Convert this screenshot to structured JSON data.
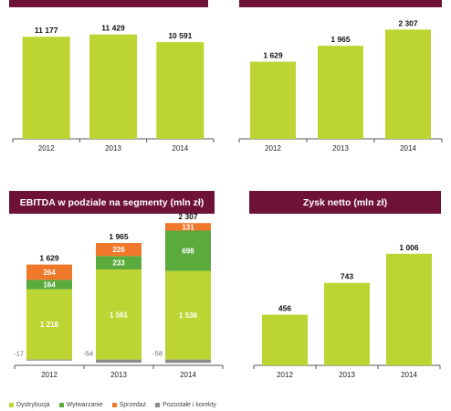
{
  "colors": {
    "header_bg": "#6e1237",
    "bar_green": "#bdd532",
    "dystrybucja": "#bdd532",
    "wytwarzanie": "#5aaa3c",
    "sprzedaz": "#f0782a",
    "pozostale": "#8c8c8c",
    "axis": "#555555"
  },
  "panel_tl": {
    "title": "",
    "chart_data": {
      "type": "bar",
      "categories": [
        "2012",
        "2013",
        "2014"
      ],
      "values": [
        11177,
        11429,
        10591
      ],
      "value_labels": [
        "11 177",
        "11 429",
        "10 591"
      ],
      "ylim": [
        0,
        14000
      ]
    }
  },
  "panel_tr": {
    "title": "",
    "chart_data": {
      "type": "bar",
      "categories": [
        "2012",
        "2013",
        "2014"
      ],
      "values": [
        1629,
        1965,
        2307
      ],
      "value_labels": [
        "1 629",
        "1 965",
        "2 307"
      ],
      "ylim": [
        0,
        2700
      ]
    }
  },
  "panel_bl": {
    "title": "EBITDA w podziale na segmenty (mln zł)",
    "chart_data": {
      "type": "bar",
      "stacked": true,
      "categories": [
        "2012",
        "2013",
        "2014"
      ],
      "series": [
        {
          "name": "Dystrybucja",
          "values": [
            1218,
            1561,
            1536
          ],
          "labels": [
            "1 218",
            "1 561",
            "1 536"
          ]
        },
        {
          "name": "Wytwarzanie",
          "values": [
            164,
            233,
            698
          ],
          "labels": [
            "164",
            "233",
            "698"
          ]
        },
        {
          "name": "Sprzedaż",
          "values": [
            264,
            226,
            131
          ],
          "labels": [
            "264",
            "226",
            "131"
          ]
        },
        {
          "name": "Pozostałe i korekty",
          "values": [
            -17,
            -54,
            -58
          ],
          "labels": [
            "-17",
            "-54",
            "-58"
          ]
        }
      ],
      "totals": [
        1629,
        1965,
        2307
      ],
      "total_labels": [
        "1 629",
        "1 965",
        "2 307"
      ],
      "ylim": [
        -100,
        2400
      ],
      "legend_position": "bottom"
    }
  },
  "panel_br": {
    "title": "Zysk netto (mln zł)",
    "chart_data": {
      "type": "bar",
      "categories": [
        "2012",
        "2013",
        "2014"
      ],
      "values": [
        456,
        743,
        1006
      ],
      "value_labels": [
        "456",
        "743",
        "1 006"
      ],
      "ylim": [
        0,
        1350
      ]
    }
  },
  "legend": {
    "dystrybucja": "Dystrybucja",
    "wytwarzanie": "Wytwarzanie",
    "sprzedaz": "Sprzedaż",
    "pozostale": "Pozostałe i korekty"
  }
}
